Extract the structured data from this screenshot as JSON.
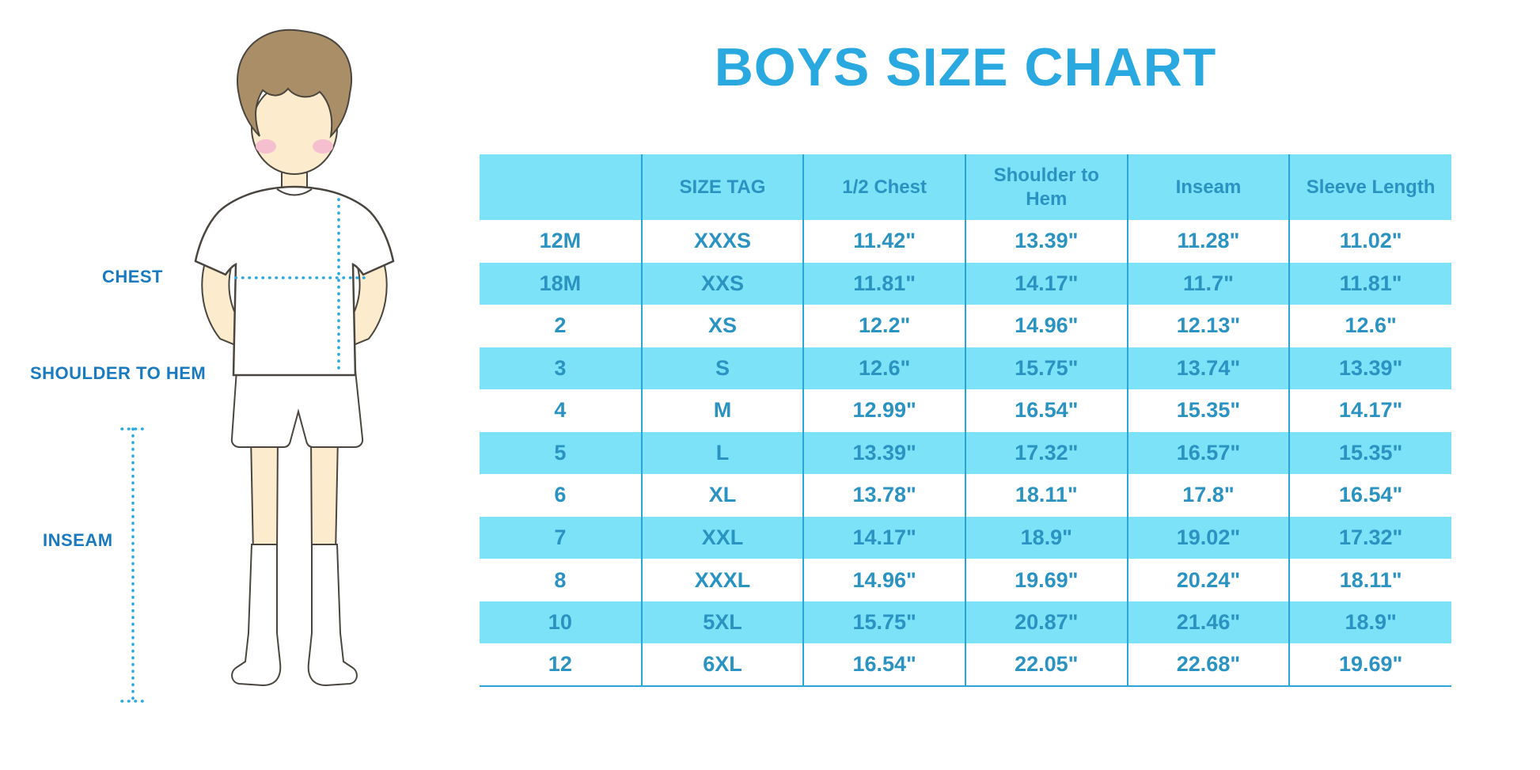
{
  "title": "BOYS SIZE CHART",
  "illustration": {
    "labels": {
      "chest": "CHEST",
      "shoulder_to_hem": "SHOULDER TO HEM",
      "inseam": "INSEAM"
    }
  },
  "colors": {
    "title_color": "#2aa8e0",
    "label_color": "#1a7abf",
    "cell_text": "#2a93c2",
    "row_cyan": "#7be2f8",
    "border_color": "#2aa5d8",
    "dotted": "#29a8df",
    "skin": "#fcebcc",
    "hair": "#aa8e67",
    "cheek": "#f6bfd0"
  },
  "chart_data": {
    "type": "table",
    "title": "BOYS SIZE CHART",
    "columns": [
      "",
      "SIZE TAG",
      "1/2 Chest",
      "Shoulder to Hem",
      "Inseam",
      "Sleeve Length"
    ],
    "rows": [
      [
        "12M",
        "XXXS",
        "11.42\"",
        "13.39\"",
        "11.28\"",
        "11.02\""
      ],
      [
        "18M",
        "XXS",
        "11.81\"",
        "14.17\"",
        "11.7\"",
        "11.81\""
      ],
      [
        "2",
        "XS",
        "12.2\"",
        "14.96\"",
        "12.13\"",
        "12.6\""
      ],
      [
        "3",
        "S",
        "12.6\"",
        "15.75\"",
        "13.74\"",
        "13.39\""
      ],
      [
        "4",
        "M",
        "12.99\"",
        "16.54\"",
        "15.35\"",
        "14.17\""
      ],
      [
        "5",
        "L",
        "13.39\"",
        "17.32\"",
        "16.57\"",
        "15.35\""
      ],
      [
        "6",
        "XL",
        "13.78\"",
        "18.11\"",
        "17.8\"",
        "16.54\""
      ],
      [
        "7",
        "XXL",
        "14.17\"",
        "18.9\"",
        "19.02\"",
        "17.32\""
      ],
      [
        "8",
        "XXXL",
        "14.96\"",
        "19.69\"",
        "20.24\"",
        "18.11\""
      ],
      [
        "10",
        "5XL",
        "15.75\"",
        "20.87\"",
        "21.46\"",
        "18.9\""
      ],
      [
        "12",
        "6XL",
        "16.54\"",
        "22.05\"",
        "22.68\"",
        "19.69\""
      ]
    ],
    "layout": {
      "striped": "white / light-cyan alternating, header light-cyan",
      "units": "inches"
    }
  }
}
